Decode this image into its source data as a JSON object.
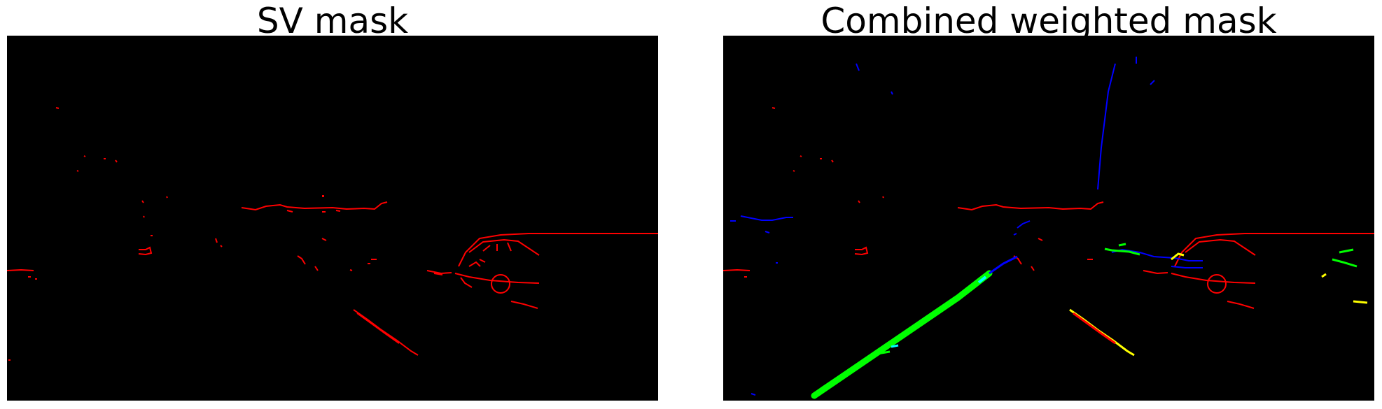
{
  "figure": {
    "background": "#ffffff",
    "panels": [
      {
        "title": "SV mask",
        "image_background": "#000000",
        "mask_colors": [
          "#ff0000"
        ]
      },
      {
        "title": "Combined weighted mask",
        "image_background": "#000000",
        "mask_colors": [
          "#ff0000",
          "#00ff00",
          "#0000ff",
          "#00ffff",
          "#ffff00"
        ]
      }
    ]
  }
}
